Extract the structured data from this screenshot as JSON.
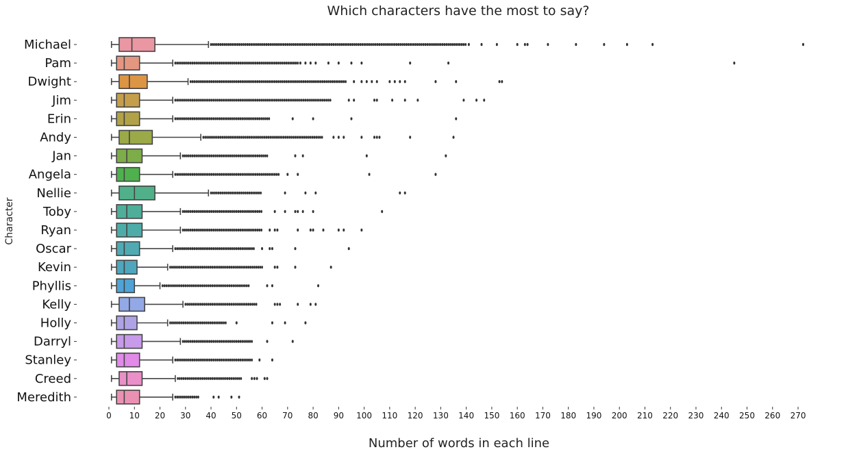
{
  "chart_data": {
    "type": "boxplot",
    "orientation": "horizontal",
    "title": "Which characters have the most to say?",
    "xlabel": "Number of words in each line",
    "ylabel": "Character",
    "xlim": [
      0,
      275
    ],
    "xticks": [
      0,
      10,
      20,
      30,
      40,
      50,
      60,
      70,
      80,
      90,
      100,
      110,
      120,
      130,
      140,
      150,
      160,
      170,
      180,
      190,
      200,
      210,
      220,
      230,
      240,
      250,
      260,
      270
    ],
    "grid": false,
    "legend": "none",
    "categories": [
      {
        "name": "Michael",
        "color": "#ea96a3",
        "min": 1,
        "q1": 4,
        "median": 9,
        "q3": 18,
        "max": 39,
        "outliers_range": [
          40,
          140
        ],
        "outliers": [
          141,
          146,
          152,
          160,
          163,
          164,
          172,
          183,
          194,
          203,
          213,
          272
        ]
      },
      {
        "name": "Pam",
        "color": "#e59681",
        "min": 1,
        "q1": 3,
        "median": 6,
        "q3": 12,
        "max": 25,
        "outliers_range": [
          26,
          74
        ],
        "outliers": [
          75,
          77,
          79,
          81,
          86,
          90,
          95,
          99,
          118,
          133,
          245
        ]
      },
      {
        "name": "Dwight",
        "color": "#dc9445",
        "min": 1,
        "q1": 4,
        "median": 8,
        "q3": 15,
        "max": 31,
        "outliers_range": [
          32,
          93
        ],
        "outliers": [
          96,
          99,
          101,
          103,
          105,
          110,
          112,
          114,
          116,
          128,
          136,
          153,
          154
        ]
      },
      {
        "name": "Jim",
        "color": "#c59e4c",
        "min": 1,
        "q1": 3,
        "median": 6,
        "q3": 12,
        "max": 25,
        "outliers_range": [
          26,
          87
        ],
        "outliers": [
          94,
          96,
          104,
          105,
          111,
          116,
          121,
          139,
          144,
          147
        ]
      },
      {
        "name": "Erin",
        "color": "#b2a247",
        "min": 1,
        "q1": 3,
        "median": 6,
        "q3": 12,
        "max": 25,
        "outliers_range": [
          26,
          63
        ],
        "outliers": [
          72,
          80,
          95,
          136
        ]
      },
      {
        "name": "Andy",
        "color": "#9ca948",
        "min": 1,
        "q1": 4,
        "median": 8,
        "q3": 17,
        "max": 36,
        "outliers_range": [
          37,
          84
        ],
        "outliers": [
          88,
          90,
          92,
          99,
          104,
          105,
          106,
          118,
          135
        ]
      },
      {
        "name": "Jan",
        "color": "#7dad48",
        "min": 1,
        "q1": 3,
        "median": 7,
        "q3": 13,
        "max": 28,
        "outliers_range": [
          29,
          62
        ],
        "outliers": [
          73,
          76,
          101,
          132
        ]
      },
      {
        "name": "Angela",
        "color": "#4fb14d",
        "min": 1,
        "q1": 3,
        "median": 6,
        "q3": 12,
        "max": 25,
        "outliers_range": [
          26,
          67
        ],
        "outliers": [
          70,
          74,
          102,
          128
        ]
      },
      {
        "name": "Nellie",
        "color": "#4fb08a",
        "min": 1,
        "q1": 4,
        "median": 10,
        "q3": 18,
        "max": 39,
        "outliers_range": [
          40,
          60
        ],
        "outliers": [
          69,
          77,
          81,
          114,
          116
        ]
      },
      {
        "name": "Toby",
        "color": "#4eae9a",
        "min": 1,
        "q1": 3,
        "median": 7,
        "q3": 13,
        "max": 28,
        "outliers_range": [
          29,
          60
        ],
        "outliers": [
          65,
          69,
          73,
          74,
          76,
          80,
          107
        ]
      },
      {
        "name": "Ryan",
        "color": "#4eaca8",
        "min": 1,
        "q1": 3,
        "median": 7,
        "q3": 13,
        "max": 28,
        "outliers_range": [
          29,
          60
        ],
        "outliers": [
          63,
          65,
          66,
          74,
          79,
          80,
          84,
          90,
          92,
          99
        ]
      },
      {
        "name": "Oscar",
        "color": "#4faab3",
        "min": 1,
        "q1": 3,
        "median": 6,
        "q3": 12,
        "max": 25,
        "outliers_range": [
          26,
          57
        ],
        "outliers": [
          60,
          63,
          64,
          73,
          94
        ]
      },
      {
        "name": "Kevin",
        "color": "#4ea7bd",
        "min": 1,
        "q1": 3,
        "median": 6,
        "q3": 11,
        "max": 23,
        "outliers_range": [
          24,
          60
        ],
        "outliers": [
          65,
          66,
          73,
          87
        ]
      },
      {
        "name": "Phyllis",
        "color": "#4fa3d6",
        "min": 1,
        "q1": 3,
        "median": 6,
        "q3": 10,
        "max": 20,
        "outliers_range": [
          21,
          55
        ],
        "outliers": [
          62,
          64,
          82
        ]
      },
      {
        "name": "Kelly",
        "color": "#93a8e6",
        "min": 1,
        "q1": 4,
        "median": 8,
        "q3": 14,
        "max": 29,
        "outliers_range": [
          30,
          58
        ],
        "outliers": [
          65,
          66,
          67,
          74,
          79,
          81
        ]
      },
      {
        "name": "Holly",
        "color": "#b0a2e6",
        "min": 1,
        "q1": 3,
        "median": 6,
        "q3": 11,
        "max": 23,
        "outliers_range": [
          24,
          46
        ],
        "outliers": [
          50,
          64,
          69,
          77
        ]
      },
      {
        "name": "Darryl",
        "color": "#c89aea",
        "min": 1,
        "q1": 3,
        "median": 6,
        "q3": 13,
        "max": 28,
        "outliers_range": [
          29,
          56
        ],
        "outliers": [
          62,
          72
        ]
      },
      {
        "name": "Stanley",
        "color": "#e18ae8",
        "min": 1,
        "q1": 3,
        "median": 6,
        "q3": 12,
        "max": 25,
        "outliers_range": [
          26,
          56
        ],
        "outliers": [
          59,
          64
        ]
      },
      {
        "name": "Creed",
        "color": "#ea8fc7",
        "min": 1,
        "q1": 4,
        "median": 7,
        "q3": 13,
        "max": 26,
        "outliers_range": [
          27,
          52
        ],
        "outliers": [
          56,
          57,
          58,
          61,
          62
        ]
      },
      {
        "name": "Meredith",
        "color": "#ea91b3",
        "min": 1,
        "q1": 3,
        "median": 6,
        "q3": 12,
        "max": 25,
        "outliers_range": [
          26,
          35
        ],
        "outliers": [
          41,
          43,
          48,
          51
        ]
      }
    ]
  }
}
